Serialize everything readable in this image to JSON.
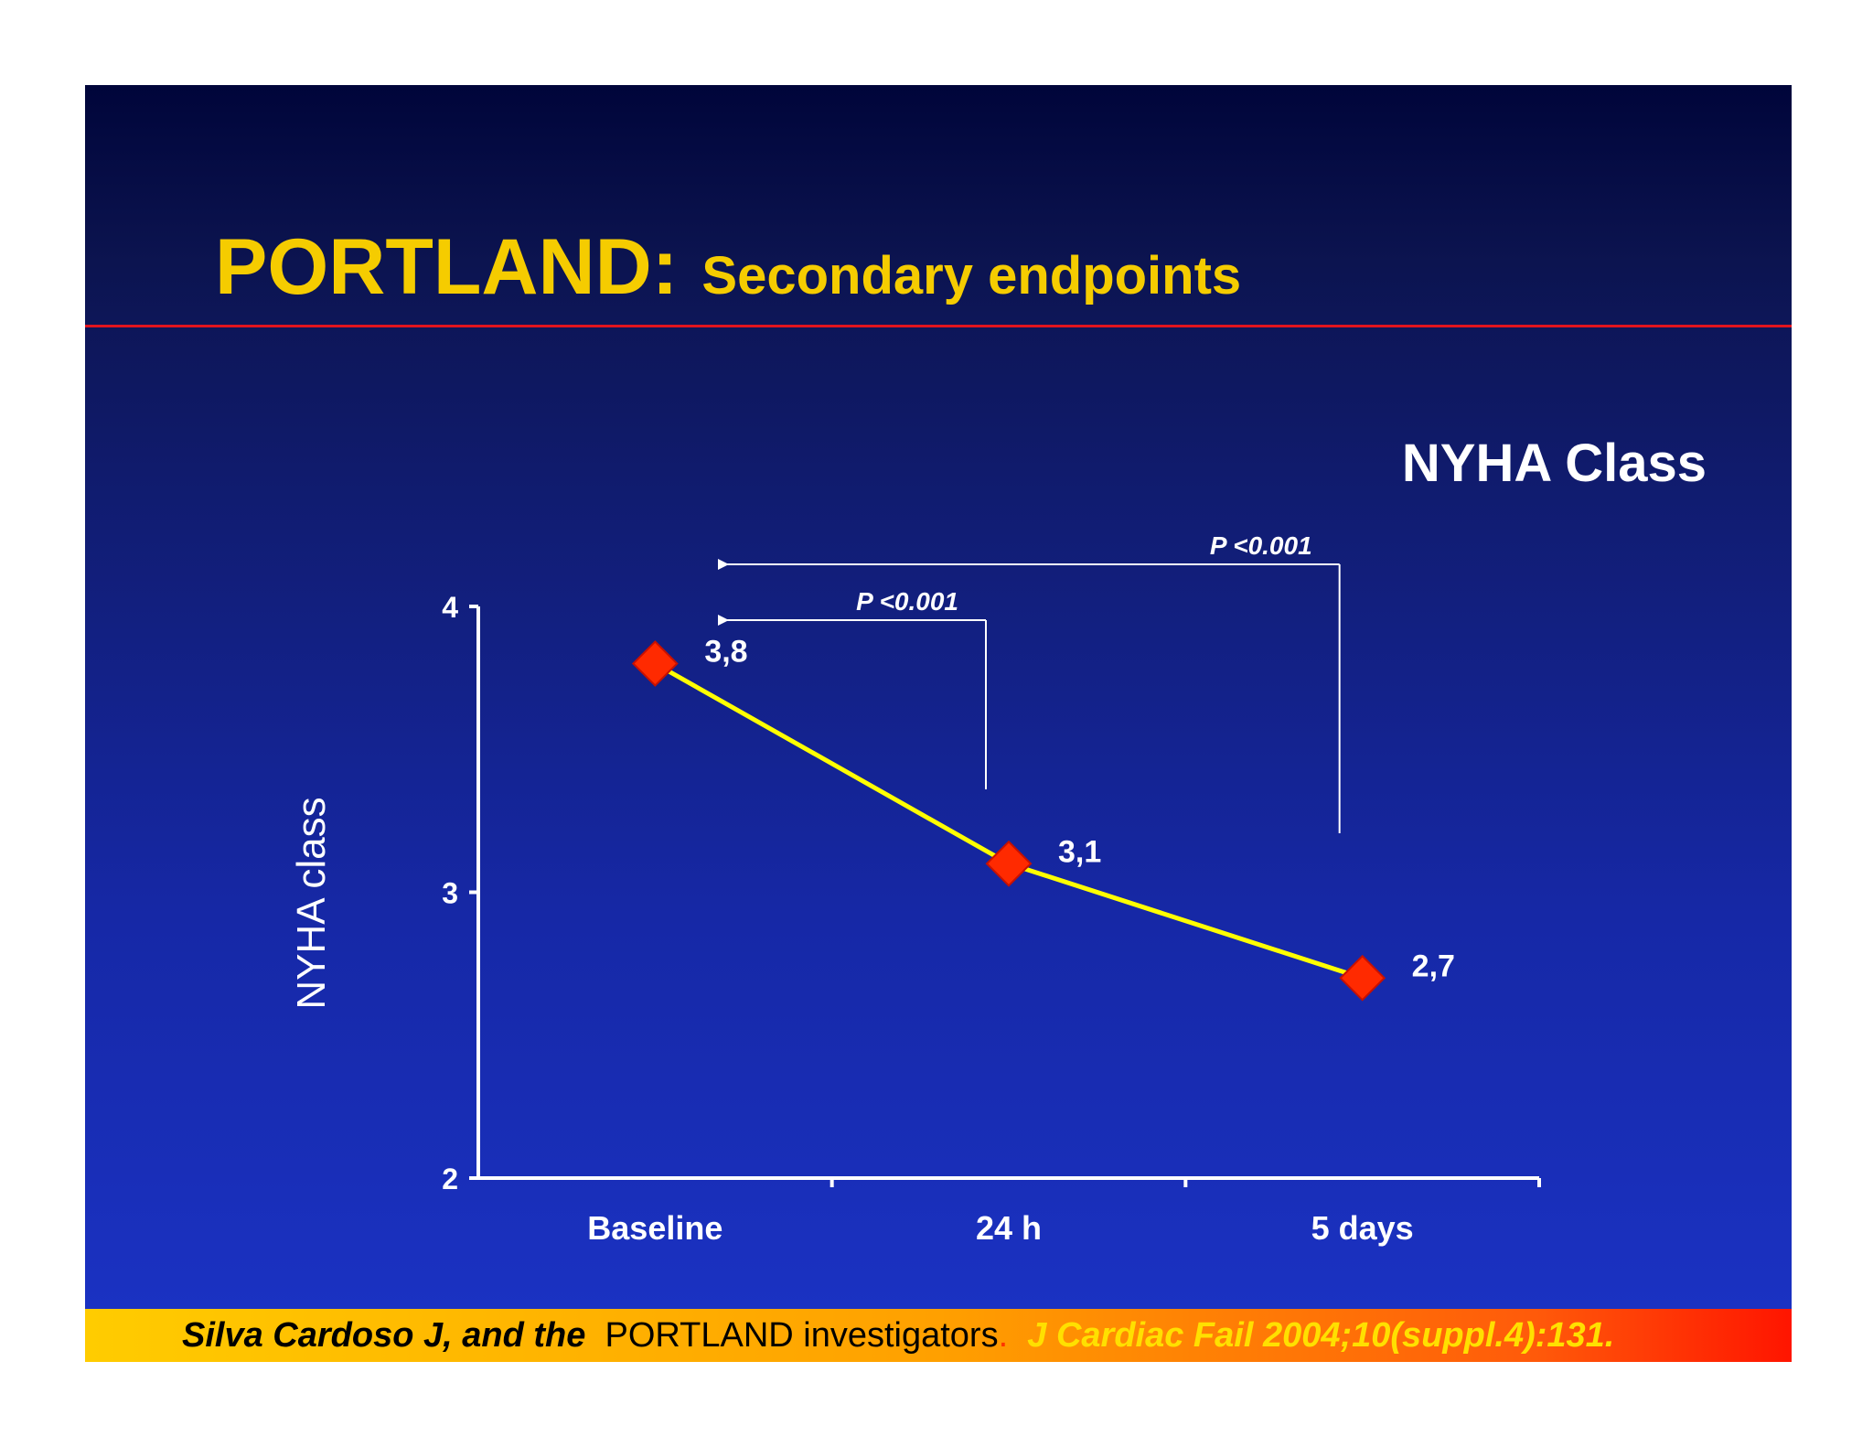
{
  "slide": {
    "title_main": "PORTLAND:",
    "title_sub": "Secondary endpoints",
    "chart_heading": "NYHA Class"
  },
  "chart_data": {
    "type": "line",
    "categories": [
      "Baseline",
      "24 h",
      "5 days"
    ],
    "values": [
      3.8,
      3.1,
      2.7
    ],
    "data_labels": [
      "3,8",
      "3,1",
      "2,7"
    ],
    "ylabel": "NYHA class",
    "xlabel": "",
    "ylim": [
      2,
      4
    ],
    "yticks": [
      2,
      3,
      4
    ],
    "grid": false,
    "line_color": "#ffff00",
    "marker": "diamond",
    "marker_color": "#ff2a00",
    "annotations": [
      {
        "text": "P <0.001",
        "from": "24 h",
        "to": "Baseline"
      },
      {
        "text": "P <0.001",
        "from": "5 days",
        "to": "Baseline"
      }
    ]
  },
  "footer": {
    "authors": "Silva Cardoso J,  and the",
    "investigators": "PORTLAND investigators",
    "separator": ".",
    "journal": "J Cardiac Fail 2004;10(suppl.4):131."
  },
  "colors": {
    "title": "#f5cc00",
    "rule": "#e0141e",
    "axis": "#ffffff"
  }
}
